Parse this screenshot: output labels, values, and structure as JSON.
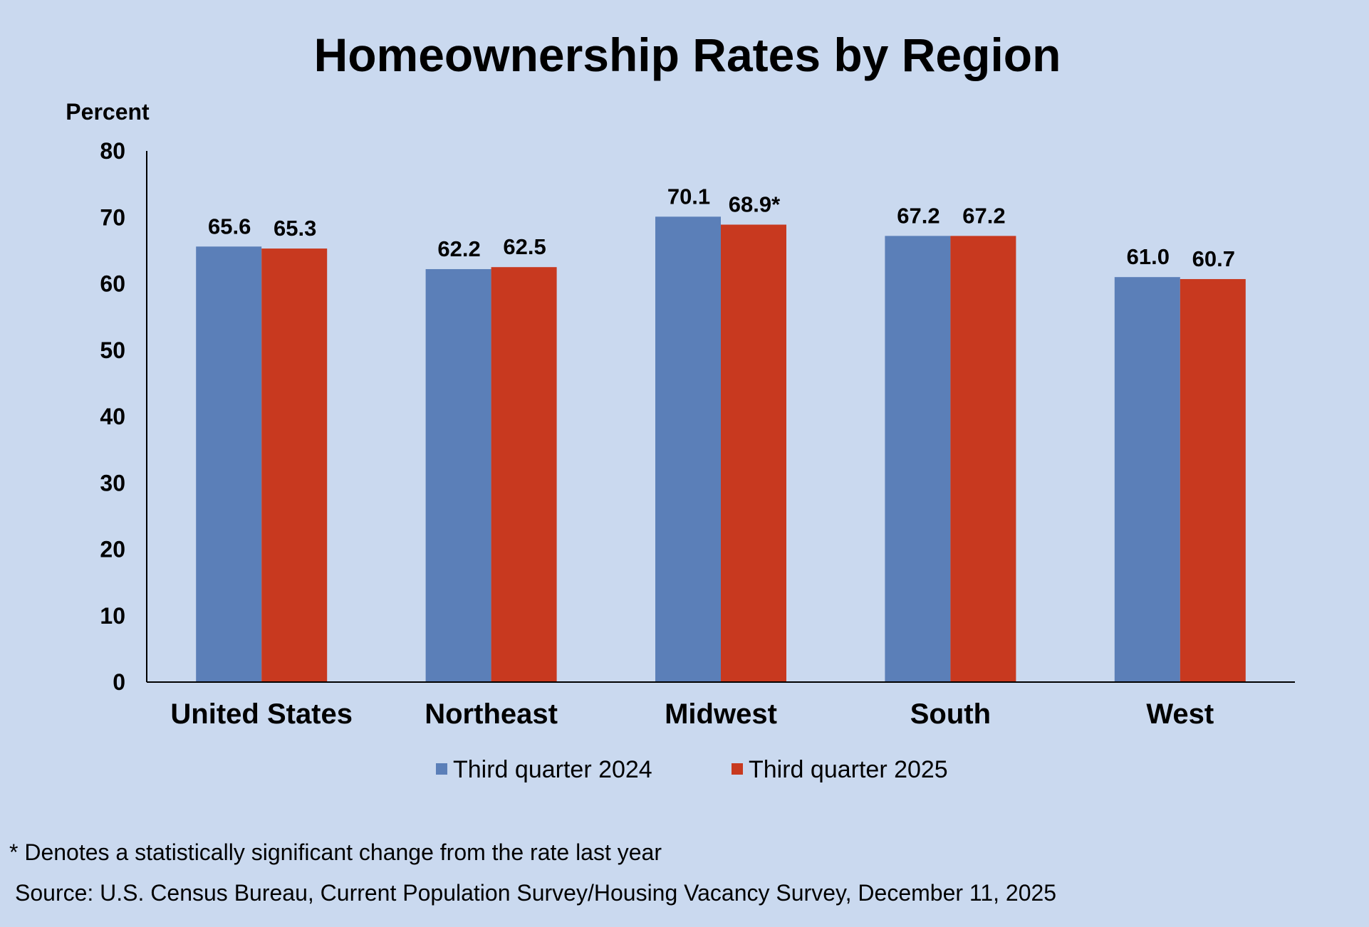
{
  "colors": {
    "background": "#cad9ef",
    "series_2024": "#5b7fb8",
    "series_2025": "#c8391f",
    "axis": "#000000",
    "text": "#000000"
  },
  "chart_data": {
    "type": "bar",
    "title": "Homeownership Rates by Region",
    "ylabel": "Percent",
    "xlabel": "",
    "categories": [
      "United States",
      "Northeast",
      "Midwest",
      "South",
      "West"
    ],
    "series": [
      {
        "name": "Third quarter 2024",
        "color": "#5b7fb8",
        "values": [
          65.6,
          62.2,
          70.1,
          67.2,
          61.0
        ],
        "labels": [
          "65.6",
          "62.2",
          "70.1",
          "67.2",
          "61.0"
        ]
      },
      {
        "name": "Third quarter 2025",
        "color": "#c8391f",
        "values": [
          65.3,
          62.5,
          68.9,
          67.2,
          60.7
        ],
        "labels": [
          "65.3",
          "62.5",
          "68.9*",
          "67.2",
          "60.7"
        ]
      }
    ],
    "ylim": [
      0,
      80
    ],
    "yticks": [
      0,
      10,
      20,
      30,
      40,
      50,
      60,
      70,
      80
    ],
    "grid": false,
    "legend_position": "bottom"
  },
  "footnote": "* Denotes a statistically significant change from the rate last year",
  "source": "Source: U.S. Census Bureau, Current Population Survey/Housing Vacancy Survey, December 11, 2025"
}
